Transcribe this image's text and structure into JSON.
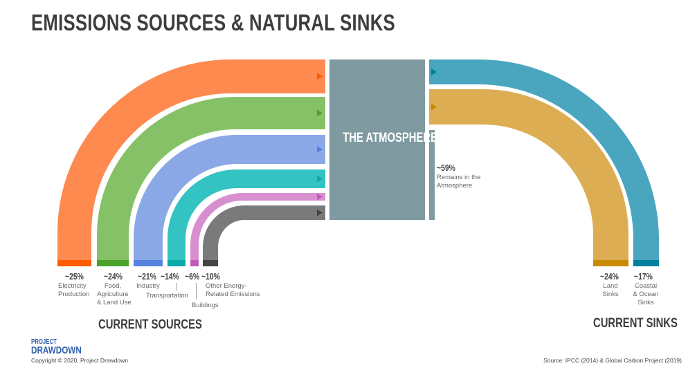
{
  "title": "EMISSIONS SOURCES & NATURAL SINKS",
  "atmosphere": {
    "label": "THE ATMOSPHERE",
    "color": "#7f9aa0",
    "remains_percent": "~59%",
    "remains_label_line1": "Remains in the",
    "remains_label_line2": "Atmosphere"
  },
  "sources": [
    {
      "percent": "~25%",
      "label_lines": [
        "Electricity",
        "Production"
      ],
      "color": "#fe8a4f",
      "dark": "#ff5a00"
    },
    {
      "percent": "~24%",
      "label_lines": [
        "Food,",
        "Agriculture",
        "& Land Use"
      ],
      "color": "#86c167",
      "dark": "#4ba229"
    },
    {
      "percent": "~21%",
      "label_lines": [
        "Industry"
      ],
      "color": "#8aa8e6",
      "dark": "#5583de"
    },
    {
      "percent": "~14%",
      "label_lines": [
        "Transportation"
      ],
      "color": "#33c3c3",
      "dark": "#0aa8a8"
    },
    {
      "percent": "~6%",
      "label_lines": [
        "Buildings"
      ],
      "color": "#d88fd0",
      "dark": "#c05bbd"
    },
    {
      "percent": "~10%",
      "label_lines": [
        "Other Energy-",
        "Related Emissions"
      ],
      "color": "#7a7a7a",
      "dark": "#444444"
    }
  ],
  "sinks": [
    {
      "percent": "~24%",
      "label_lines": [
        "Land",
        "Sinks"
      ],
      "color": "#dcad52",
      "dark": "#c98a00"
    },
    {
      "percent": "~17%",
      "label_lines": [
        "Coastal",
        "& Ocean",
        "Sinks"
      ],
      "color": "#4aa6bf",
      "dark": "#00809e"
    }
  ],
  "sources_heading": "CURRENT SOURCES",
  "sinks_heading": "CURRENT SINKS",
  "logo": {
    "line1": "PROJECT",
    "line2": "DRAWDOWN"
  },
  "copyright": "Copyright © 2020, Project Drawdown",
  "source": "Source: IPCC (2014) & Global Carbon Project (2019)"
}
